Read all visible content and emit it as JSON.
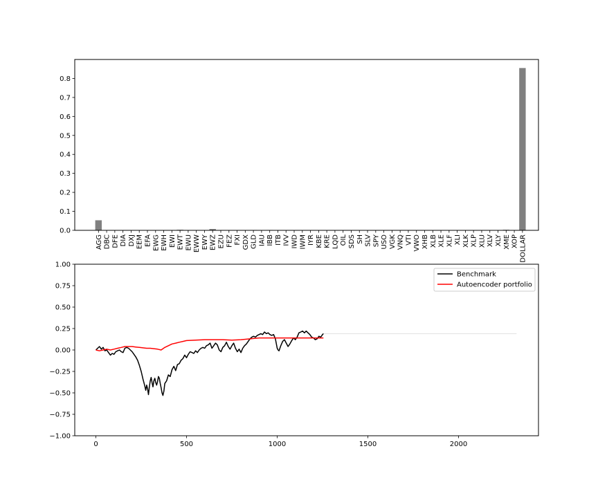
{
  "chart_data": [
    {
      "type": "bar",
      "categories": [
        "AGG",
        "DBC",
        "DFE",
        "DIA",
        "DXJ",
        "EEM",
        "EFA",
        "EWG",
        "EWH",
        "EWI",
        "EWT",
        "EWU",
        "EWW",
        "EWY",
        "EWZ",
        "EZU",
        "FEZ",
        "FXI",
        "GDX",
        "GLD",
        "IAU",
        "IBB",
        "ITB",
        "IVV",
        "IWD",
        "IWM",
        "IYR",
        "KBE",
        "KRE",
        "LQD",
        "OIL",
        "SDS",
        "SH",
        "SLV",
        "SPY",
        "USO",
        "VGK",
        "VNQ",
        "VTI",
        "VWO",
        "XHB",
        "XLB",
        "XLE",
        "XLF",
        "XLI",
        "XLK",
        "XLP",
        "XLU",
        "XLV",
        "XLY",
        "XME",
        "XOP",
        "DOLLAR"
      ],
      "values": [
        0.053,
        0,
        0,
        0,
        0,
        0,
        0,
        0,
        0,
        0,
        0.003,
        0,
        0,
        0,
        0.007,
        0,
        0,
        0,
        0,
        0.002,
        0,
        0.002,
        0,
        0,
        0,
        0,
        0,
        0,
        0,
        0,
        0,
        0,
        0,
        0,
        0,
        0,
        0,
        0,
        0,
        0,
        0,
        0,
        0,
        0,
        0,
        0,
        0,
        0,
        0,
        0,
        0.003,
        0,
        0.855
      ],
      "color": "#808080",
      "ylim": [
        0,
        0.9
      ],
      "yticks": [
        "0.0",
        "0.1",
        "0.2",
        "0.3",
        "0.4",
        "0.5",
        "0.6",
        "0.7",
        "0.8"
      ],
      "xlabel": "",
      "ylabel": "",
      "title": ""
    },
    {
      "type": "line",
      "xlim": [
        0,
        2320
      ],
      "ylim": [
        -1.0,
        1.0
      ],
      "xticks": [
        "0",
        "500",
        "1000",
        "1500",
        "2000"
      ],
      "yticks": [
        "−1.00",
        "−0.75",
        "−0.50",
        "−0.25",
        "0.00",
        "0.25",
        "0.50",
        "0.75",
        "1.00"
      ],
      "legend_position": "top-right",
      "series": [
        {
          "name": "Benchmark",
          "color": "#000000",
          "x": [
            0,
            10,
            20,
            30,
            40,
            50,
            60,
            70,
            80,
            90,
            100,
            110,
            120,
            130,
            140,
            150,
            160,
            170,
            180,
            190,
            200,
            210,
            220,
            230,
            240,
            250,
            260,
            265,
            270,
            275,
            280,
            285,
            290,
            295,
            300,
            305,
            310,
            315,
            320,
            325,
            330,
            335,
            340,
            345,
            350,
            355,
            360,
            365,
            370,
            375,
            380,
            390,
            400,
            410,
            420,
            430,
            440,
            450,
            460,
            470,
            480,
            490,
            500,
            510,
            520,
            530,
            540,
            550,
            560,
            570,
            580,
            590,
            600,
            610,
            620,
            630,
            640,
            650,
            660,
            670,
            680,
            690,
            700,
            710,
            720,
            730,
            740,
            750,
            760,
            770,
            780,
            790,
            800,
            810,
            820,
            830,
            840,
            850,
            860,
            870,
            880,
            890,
            900,
            910,
            920,
            930,
            940,
            950,
            960,
            970,
            980,
            990,
            1000,
            1005,
            1010,
            1020,
            1030,
            1040,
            1050,
            1060,
            1070,
            1080,
            1090,
            1100,
            1110,
            1120,
            1130,
            1140,
            1150,
            1160,
            1170,
            1180,
            1190,
            1200,
            1210,
            1220,
            1230,
            1240,
            1250,
            1255
          ],
          "y": [
            0.0,
            0.02,
            0.04,
            0.01,
            0.03,
            -0.01,
            0.0,
            -0.03,
            -0.06,
            -0.04,
            -0.05,
            -0.02,
            -0.01,
            0.0,
            -0.02,
            -0.03,
            0.02,
            0.03,
            0.02,
            0.0,
            -0.02,
            -0.05,
            -0.08,
            -0.12,
            -0.18,
            -0.25,
            -0.34,
            -0.38,
            -0.42,
            -0.47,
            -0.41,
            -0.45,
            -0.52,
            -0.43,
            -0.36,
            -0.32,
            -0.38,
            -0.43,
            -0.36,
            -0.33,
            -0.38,
            -0.41,
            -0.37,
            -0.31,
            -0.33,
            -0.39,
            -0.44,
            -0.5,
            -0.53,
            -0.48,
            -0.39,
            -0.36,
            -0.29,
            -0.31,
            -0.23,
            -0.19,
            -0.24,
            -0.17,
            -0.16,
            -0.12,
            -0.1,
            -0.06,
            -0.09,
            -0.05,
            -0.02,
            -0.03,
            -0.04,
            -0.01,
            -0.03,
            0.0,
            0.02,
            0.03,
            0.02,
            0.05,
            0.06,
            0.08,
            0.02,
            0.05,
            0.08,
            0.06,
            0.0,
            -0.02,
            0.03,
            0.05,
            0.09,
            0.04,
            0.01,
            0.05,
            0.08,
            0.02,
            -0.02,
            0.01,
            -0.03,
            0.02,
            0.05,
            0.07,
            0.1,
            0.13,
            0.15,
            0.16,
            0.15,
            0.17,
            0.18,
            0.19,
            0.18,
            0.21,
            0.19,
            0.2,
            0.18,
            0.17,
            0.18,
            0.13,
            0.02,
            0.0,
            -0.01,
            0.05,
            0.1,
            0.12,
            0.08,
            0.04,
            0.07,
            0.11,
            0.14,
            0.12,
            0.15,
            0.2,
            0.21,
            0.22,
            0.2,
            0.22,
            0.2,
            0.18,
            0.15,
            0.14,
            0.12,
            0.13,
            0.16,
            0.15,
            0.18,
            0.19
          ]
        },
        {
          "name": "Autoencoder portfolio",
          "color": "#ff0000",
          "x": [
            0,
            20,
            40,
            60,
            80,
            100,
            120,
            140,
            160,
            180,
            200,
            220,
            240,
            260,
            280,
            300,
            320,
            340,
            360,
            380,
            400,
            420,
            440,
            460,
            480,
            500,
            550,
            600,
            650,
            700,
            750,
            800,
            850,
            900,
            950,
            1000,
            1050,
            1100,
            1150,
            1200,
            1255
          ],
          "y": [
            0.0,
            -0.01,
            0.0,
            0.01,
            0.0,
            0.01,
            0.02,
            0.03,
            0.04,
            0.04,
            0.04,
            0.035,
            0.03,
            0.025,
            0.02,
            0.02,
            0.015,
            0.01,
            0.0,
            0.03,
            0.05,
            0.07,
            0.08,
            0.09,
            0.1,
            0.11,
            0.115,
            0.12,
            0.12,
            0.12,
            0.115,
            0.12,
            0.13,
            0.14,
            0.14,
            0.14,
            0.14,
            0.14,
            0.14,
            0.14,
            0.14
          ]
        }
      ],
      "extra_line": {
        "color": "#dddddd",
        "x": [
          1255,
          2320
        ],
        "y": [
          0.19,
          0.19
        ]
      }
    }
  ]
}
